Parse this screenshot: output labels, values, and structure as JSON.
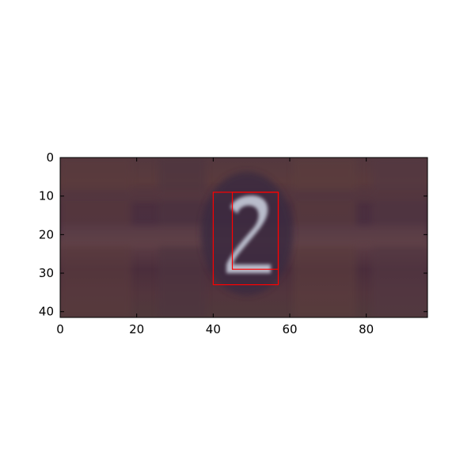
{
  "image": {
    "description_free": true,
    "axis": {
      "x_ticks": [
        {
          "value": 0,
          "label": "0"
        },
        {
          "value": 20,
          "label": "20"
        },
        {
          "value": 40,
          "label": "40"
        },
        {
          "value": 60,
          "label": "60"
        },
        {
          "value": 80,
          "label": "80"
        }
      ],
      "y_ticks": [
        {
          "value": 0,
          "label": "0"
        },
        {
          "value": 10,
          "label": "10"
        },
        {
          "value": 20,
          "label": "20"
        },
        {
          "value": 30,
          "label": "30"
        },
        {
          "value": 40,
          "label": "40"
        }
      ],
      "xlim": [
        0,
        96
      ],
      "ylim": [
        0,
        41.5
      ],
      "y_inverted": true
    },
    "boxes": [
      {
        "x0": 40,
        "y0": 9,
        "x1": 57,
        "y1": 33,
        "color": "#ff0000"
      },
      {
        "x0": 45,
        "y0": 9,
        "x1": 57,
        "y1": 29,
        "color": "#ff0000"
      }
    ],
    "digit_glyph": "2",
    "colors": {
      "background": "#4a2f3c",
      "digit": "#b9bccb"
    }
  }
}
